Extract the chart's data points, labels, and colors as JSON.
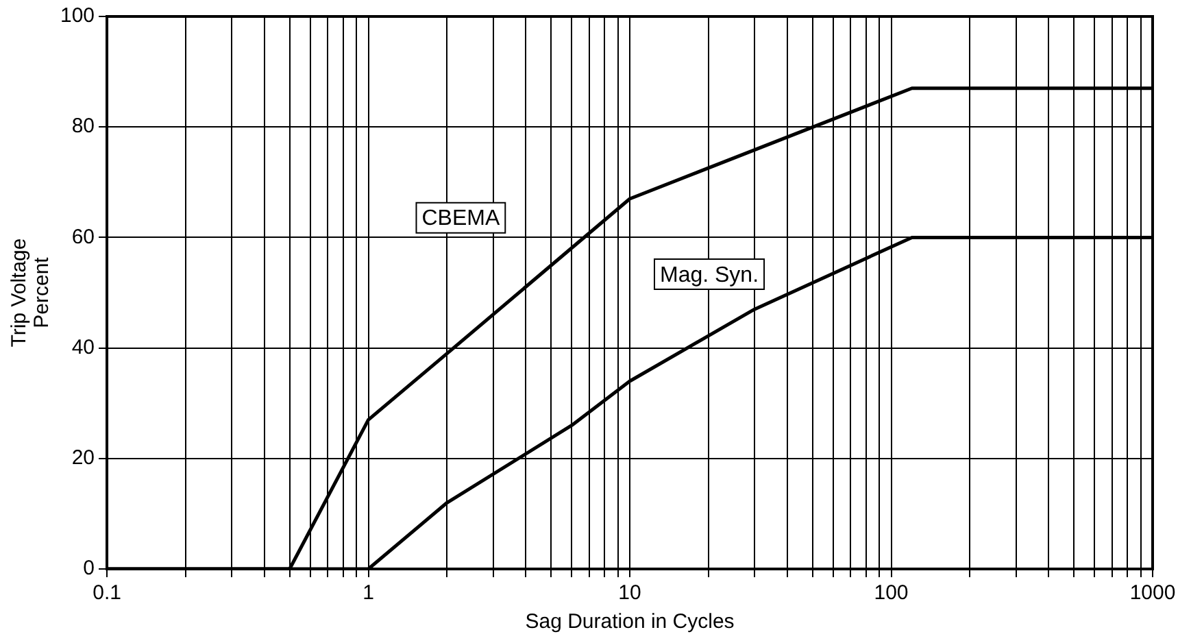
{
  "chart_data": {
    "type": "line",
    "xlabel": "Sag Duration in Cycles",
    "ylabel": "Trip Voltage Percent",
    "log": "x",
    "xlim": [
      0.1,
      1000
    ],
    "ylim": [
      0,
      100
    ],
    "xticks": [
      0.1,
      {
        "value": 0.2,
        "label": null
      },
      {
        "value": 0.3,
        "label": null
      },
      {
        "value": 0.4,
        "label": null
      },
      {
        "value": 0.5,
        "label": null
      },
      {
        "value": 0.6,
        "label": null
      },
      {
        "value": 0.7,
        "label": null
      },
      {
        "value": 0.8,
        "label": null
      },
      {
        "value": 0.9,
        "label": null
      },
      1,
      {
        "value": 2,
        "label": null
      },
      {
        "value": 3,
        "label": null
      },
      {
        "value": 4,
        "label": null
      },
      {
        "value": 5,
        "label": null
      },
      {
        "value": 6,
        "label": null
      },
      {
        "value": 7,
        "label": null
      },
      {
        "value": 8,
        "label": null
      },
      {
        "value": 9,
        "label": null
      },
      10,
      {
        "value": 20,
        "label": null
      },
      {
        "value": 30,
        "label": null
      },
      {
        "value": 40,
        "label": null
      },
      {
        "value": 50,
        "label": null
      },
      {
        "value": 60,
        "label": null
      },
      {
        "value": 70,
        "label": null
      },
      {
        "value": 80,
        "label": null
      },
      {
        "value": 90,
        "label": null
      },
      100,
      {
        "value": 200,
        "label": null
      },
      {
        "value": 300,
        "label": null
      },
      {
        "value": 400,
        "label": null
      },
      {
        "value": 500,
        "label": null
      },
      {
        "value": 600,
        "label": null
      },
      {
        "value": 700,
        "label": null
      },
      {
        "value": 800,
        "label": null
      },
      {
        "value": 900,
        "label": null
      },
      1000
    ],
    "yticks": [
      0,
      20,
      40,
      60,
      80,
      100
    ],
    "grid": true,
    "legend": false,
    "marker": "none",
    "line_style": "solid",
    "series": [
      {
        "name": "CBEMA",
        "color": "#000000",
        "x": [
          0.1,
          0.5,
          1,
          2,
          10,
          120,
          1000
        ],
        "values": [
          0,
          0,
          27,
          39,
          67,
          87,
          87
        ]
      },
      {
        "name": "Mag. Syn.",
        "color": "#000000",
        "x": [
          0.1,
          1,
          2,
          6,
          10,
          30,
          120,
          1000
        ],
        "values": [
          0,
          0,
          12,
          26,
          34,
          47,
          60,
          60
        ]
      }
    ]
  }
}
